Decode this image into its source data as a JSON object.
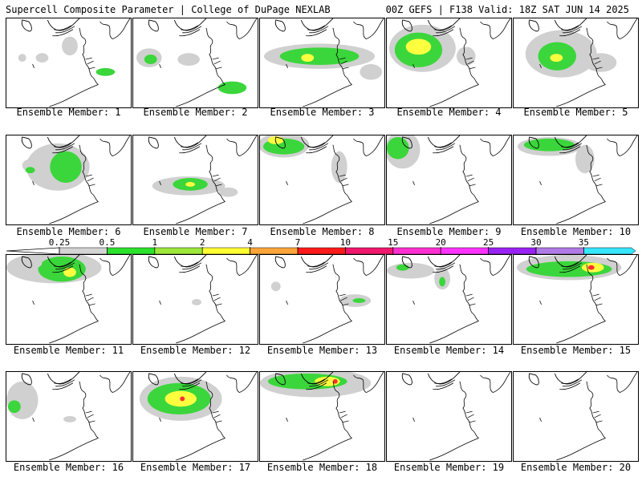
{
  "header": {
    "title": "Supercell Composite Parameter | College of DuPage NEXLAB",
    "run": "00Z GEFS | F138 Valid: 18Z SAT JUN 14 2025"
  },
  "colorbar": {
    "labels": [
      "0.25",
      "0.5",
      "1",
      "2",
      "4",
      "7",
      "10",
      "15",
      "20",
      "25",
      "30",
      "35"
    ],
    "colors": [
      "#d4d4d4",
      "#2de22d",
      "#9de83a",
      "#ffff33",
      "#ffa53a",
      "#ff1a1a",
      "#f0186d",
      "#ff30d2",
      "#ff33ff",
      "#9a22f2",
      "#b07ae6",
      "#37e6ff"
    ]
  },
  "colors": {
    "land_outline": "#000000",
    "light_fill": "#d0d0d0",
    "green_fill": "#3bd63b",
    "yellow_fill": "#ffff40",
    "red_fill": "#ff3030"
  },
  "members": [
    {
      "label": "Ensemble Member: 1"
    },
    {
      "label": "Ensemble Member: 2"
    },
    {
      "label": "Ensemble Member: 3"
    },
    {
      "label": "Ensemble Member: 4"
    },
    {
      "label": "Ensemble Member: 5"
    },
    {
      "label": "Ensemble Member: 6"
    },
    {
      "label": "Ensemble Member: 7"
    },
    {
      "label": "Ensemble Member: 8"
    },
    {
      "label": "Ensemble Member: 9"
    },
    {
      "label": "Ensemble Member: 10"
    },
    {
      "label": "Ensemble Member: 11"
    },
    {
      "label": "Ensemble Member: 12"
    },
    {
      "label": "Ensemble Member: 13"
    },
    {
      "label": "Ensemble Member: 14"
    },
    {
      "label": "Ensemble Member: 15"
    },
    {
      "label": "Ensemble Member: 16"
    },
    {
      "label": "Ensemble Member: 17"
    },
    {
      "label": "Ensemble Member: 18"
    },
    {
      "label": "Ensemble Member: 19"
    },
    {
      "label": "Ensemble Member: 20"
    }
  ]
}
